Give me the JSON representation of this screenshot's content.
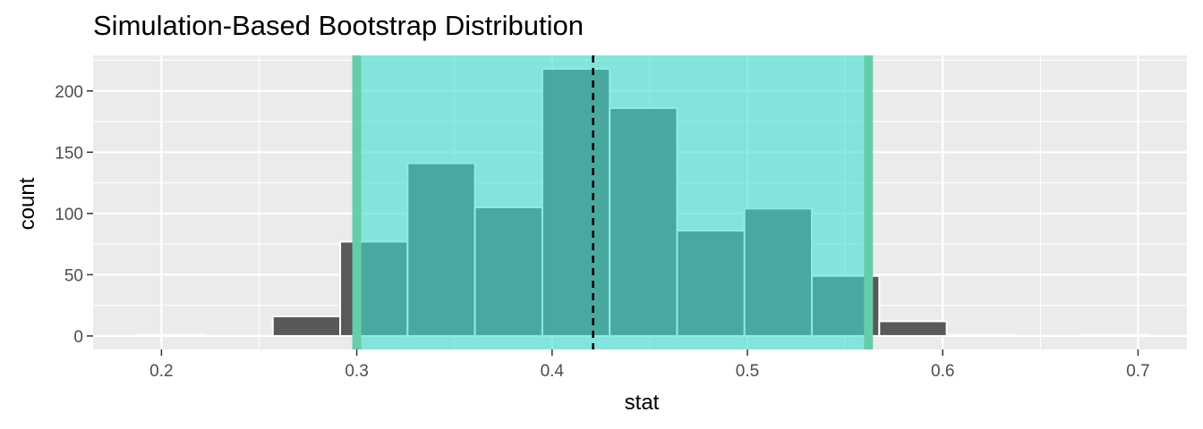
{
  "chart_data": {
    "type": "bar",
    "title": "Simulation-Based Bootstrap Distribution",
    "xlabel": "stat",
    "ylabel": "count",
    "xlim": [
      0.165,
      0.725
    ],
    "ylim": [
      -11,
      229
    ],
    "x_ticks": [
      0.2,
      0.3,
      0.4,
      0.5,
      0.6,
      0.7
    ],
    "x_tick_labels": [
      "0.2",
      "0.3",
      "0.4",
      "0.5",
      "0.6",
      "0.7"
    ],
    "y_ticks": [
      0,
      50,
      100,
      150,
      200
    ],
    "y_tick_labels": [
      "0",
      "50",
      "100",
      "150",
      "200"
    ],
    "bin_width": 0.0345,
    "bins": [
      {
        "xmin": 0.188,
        "xmax": 0.2225,
        "count": 1
      },
      {
        "xmin": 0.2225,
        "xmax": 0.257,
        "count": 0
      },
      {
        "xmin": 0.257,
        "xmax": 0.2915,
        "count": 16
      },
      {
        "xmin": 0.2915,
        "xmax": 0.326,
        "count": 77
      },
      {
        "xmin": 0.326,
        "xmax": 0.3605,
        "count": 141
      },
      {
        "xmin": 0.3605,
        "xmax": 0.395,
        "count": 105
      },
      {
        "xmin": 0.395,
        "xmax": 0.4295,
        "count": 218
      },
      {
        "xmin": 0.4295,
        "xmax": 0.464,
        "count": 186
      },
      {
        "xmin": 0.464,
        "xmax": 0.4985,
        "count": 86
      },
      {
        "xmin": 0.4985,
        "xmax": 0.533,
        "count": 104
      },
      {
        "xmin": 0.533,
        "xmax": 0.5675,
        "count": 49
      },
      {
        "xmin": 0.5675,
        "xmax": 0.602,
        "count": 12
      },
      {
        "xmin": 0.602,
        "xmax": 0.6365,
        "count": 1
      },
      {
        "xmin": 0.6365,
        "xmax": 0.671,
        "count": 0
      },
      {
        "xmin": 0.671,
        "xmax": 0.7055,
        "count": 1
      }
    ],
    "confidence_interval": {
      "lower": 0.3,
      "upper": 0.562
    },
    "point_estimate": 0.421,
    "grid": true,
    "colors": {
      "panel_background": "#ebebeb",
      "grid": "#ffffff",
      "bar_fill": "#595959",
      "bar_outline": "#ffffff",
      "ci_shade": "#3fe0d0",
      "ci_shade_opacity": 0.6,
      "ci_endpoint": "#66cdaa",
      "point_estimate_line": "#000000"
    }
  }
}
